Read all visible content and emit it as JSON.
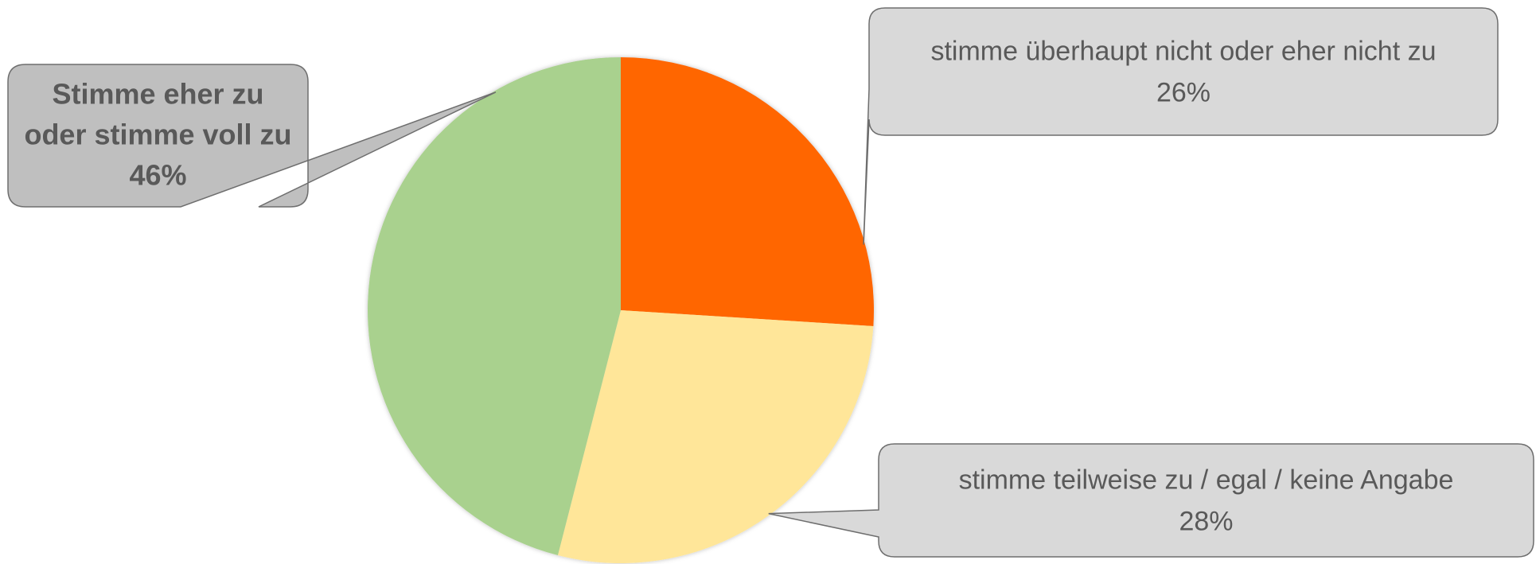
{
  "chart_data": {
    "type": "pie",
    "title": "",
    "start_angle_deg": 0,
    "direction": "clockwise",
    "slices": [
      {
        "label_line1": "stimme überhaupt nicht oder eher nicht zu",
        "label_line2": "",
        "label_line3": "",
        "value": 26,
        "value_label": "26%",
        "color": "#FF6600",
        "label_bold": false,
        "callout_fill": "#D9D9D9"
      },
      {
        "label_line1": "stimme teilweise zu / egal / keine Angabe",
        "label_line2": "",
        "label_line3": "",
        "value": 28,
        "value_label": "28%",
        "color": "#FFE699",
        "label_bold": false,
        "callout_fill": "#D9D9D9"
      },
      {
        "label_line1": "Stimme eher zu",
        "label_line2": "oder stimme voll zu",
        "label_line3": "",
        "value": 46,
        "value_label": "46%",
        "color": "#A9D18E",
        "label_bold": true,
        "callout_fill": "#BFBFBF"
      }
    ],
    "callout_border": "#6E6E6E",
    "text_color": "#595959"
  }
}
